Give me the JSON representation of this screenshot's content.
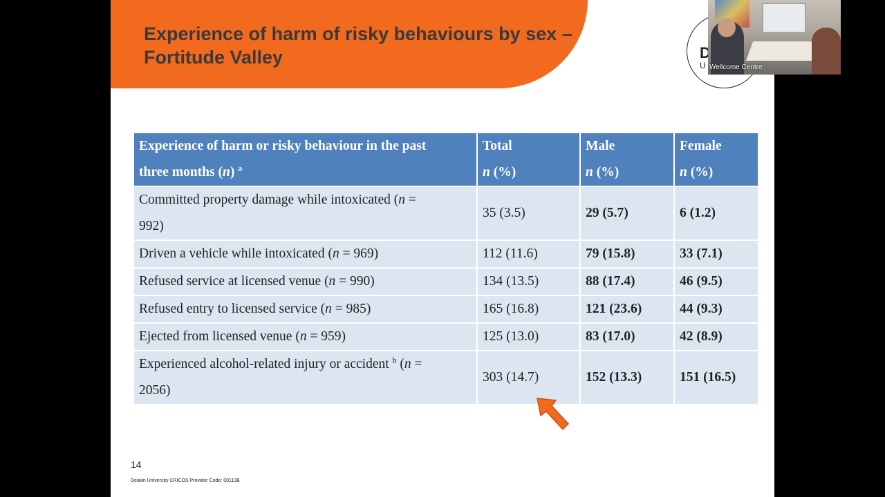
{
  "slide": {
    "title_line1": "Experience of harm of risky behaviours by sex –",
    "title_line2": "Fortitude Valley",
    "page_number": "14",
    "footer": "Deakin University CRICOS Provider Code: 00113B",
    "logo_text": "D",
    "logo_sub": "U"
  },
  "table": {
    "headers": {
      "col1_line1": "Experience of harm or risky behaviour in the past",
      "col1_line2_pre": "three months (",
      "col1_line2_n": "n",
      "col1_line2_post": ") ",
      "col1_sup": "a",
      "total": "Total",
      "male": "Male",
      "female": "Female",
      "n": "n",
      "pct": " (%)"
    },
    "rows": [
      {
        "pre": "Committed property damage while intoxicated (",
        "n": "n",
        "post": " =",
        "line2": "992)",
        "total": "35 (3.5)",
        "male": "29 (5.7)",
        "female": "6 (1.2)"
      },
      {
        "pre": "Driven a vehicle while intoxicated (",
        "n": "n",
        "post": " = 969)",
        "total": "112 (11.6)",
        "male": "79 (15.8)",
        "female": "33 (7.1)"
      },
      {
        "pre": "Refused service at licensed venue (",
        "n": "n",
        "post": " = 990)",
        "total": "134 (13.5)",
        "male": "88 (17.4)",
        "female": "46 (9.5)"
      },
      {
        "pre": "Refused entry to licensed service (",
        "n": "n",
        "post": " = 985)",
        "total": "165 (16.8)",
        "male": "121 (23.6)",
        "female": "44 (9.3)"
      },
      {
        "pre": "Ejected from licensed venue (",
        "n": "n",
        "post": " = 959)",
        "total": "125 (13.0)",
        "male": "83 (17.0)",
        "female": "42 (8.9)"
      },
      {
        "pre": "Experienced alcohol-related injury or accident ",
        "sup": "b",
        "pre2": " (",
        "n": "n",
        "post": " =",
        "line2": "2056)",
        "total": "303 (14.7)",
        "male": "152 (13.3)",
        "female": "151 (16.5)"
      }
    ]
  },
  "video": {
    "participant_label": "Wellcome Centre"
  },
  "colors": {
    "banner": "#f26a1e",
    "header_bg": "#4f81bd",
    "cell_bg": "#dce6f1"
  }
}
